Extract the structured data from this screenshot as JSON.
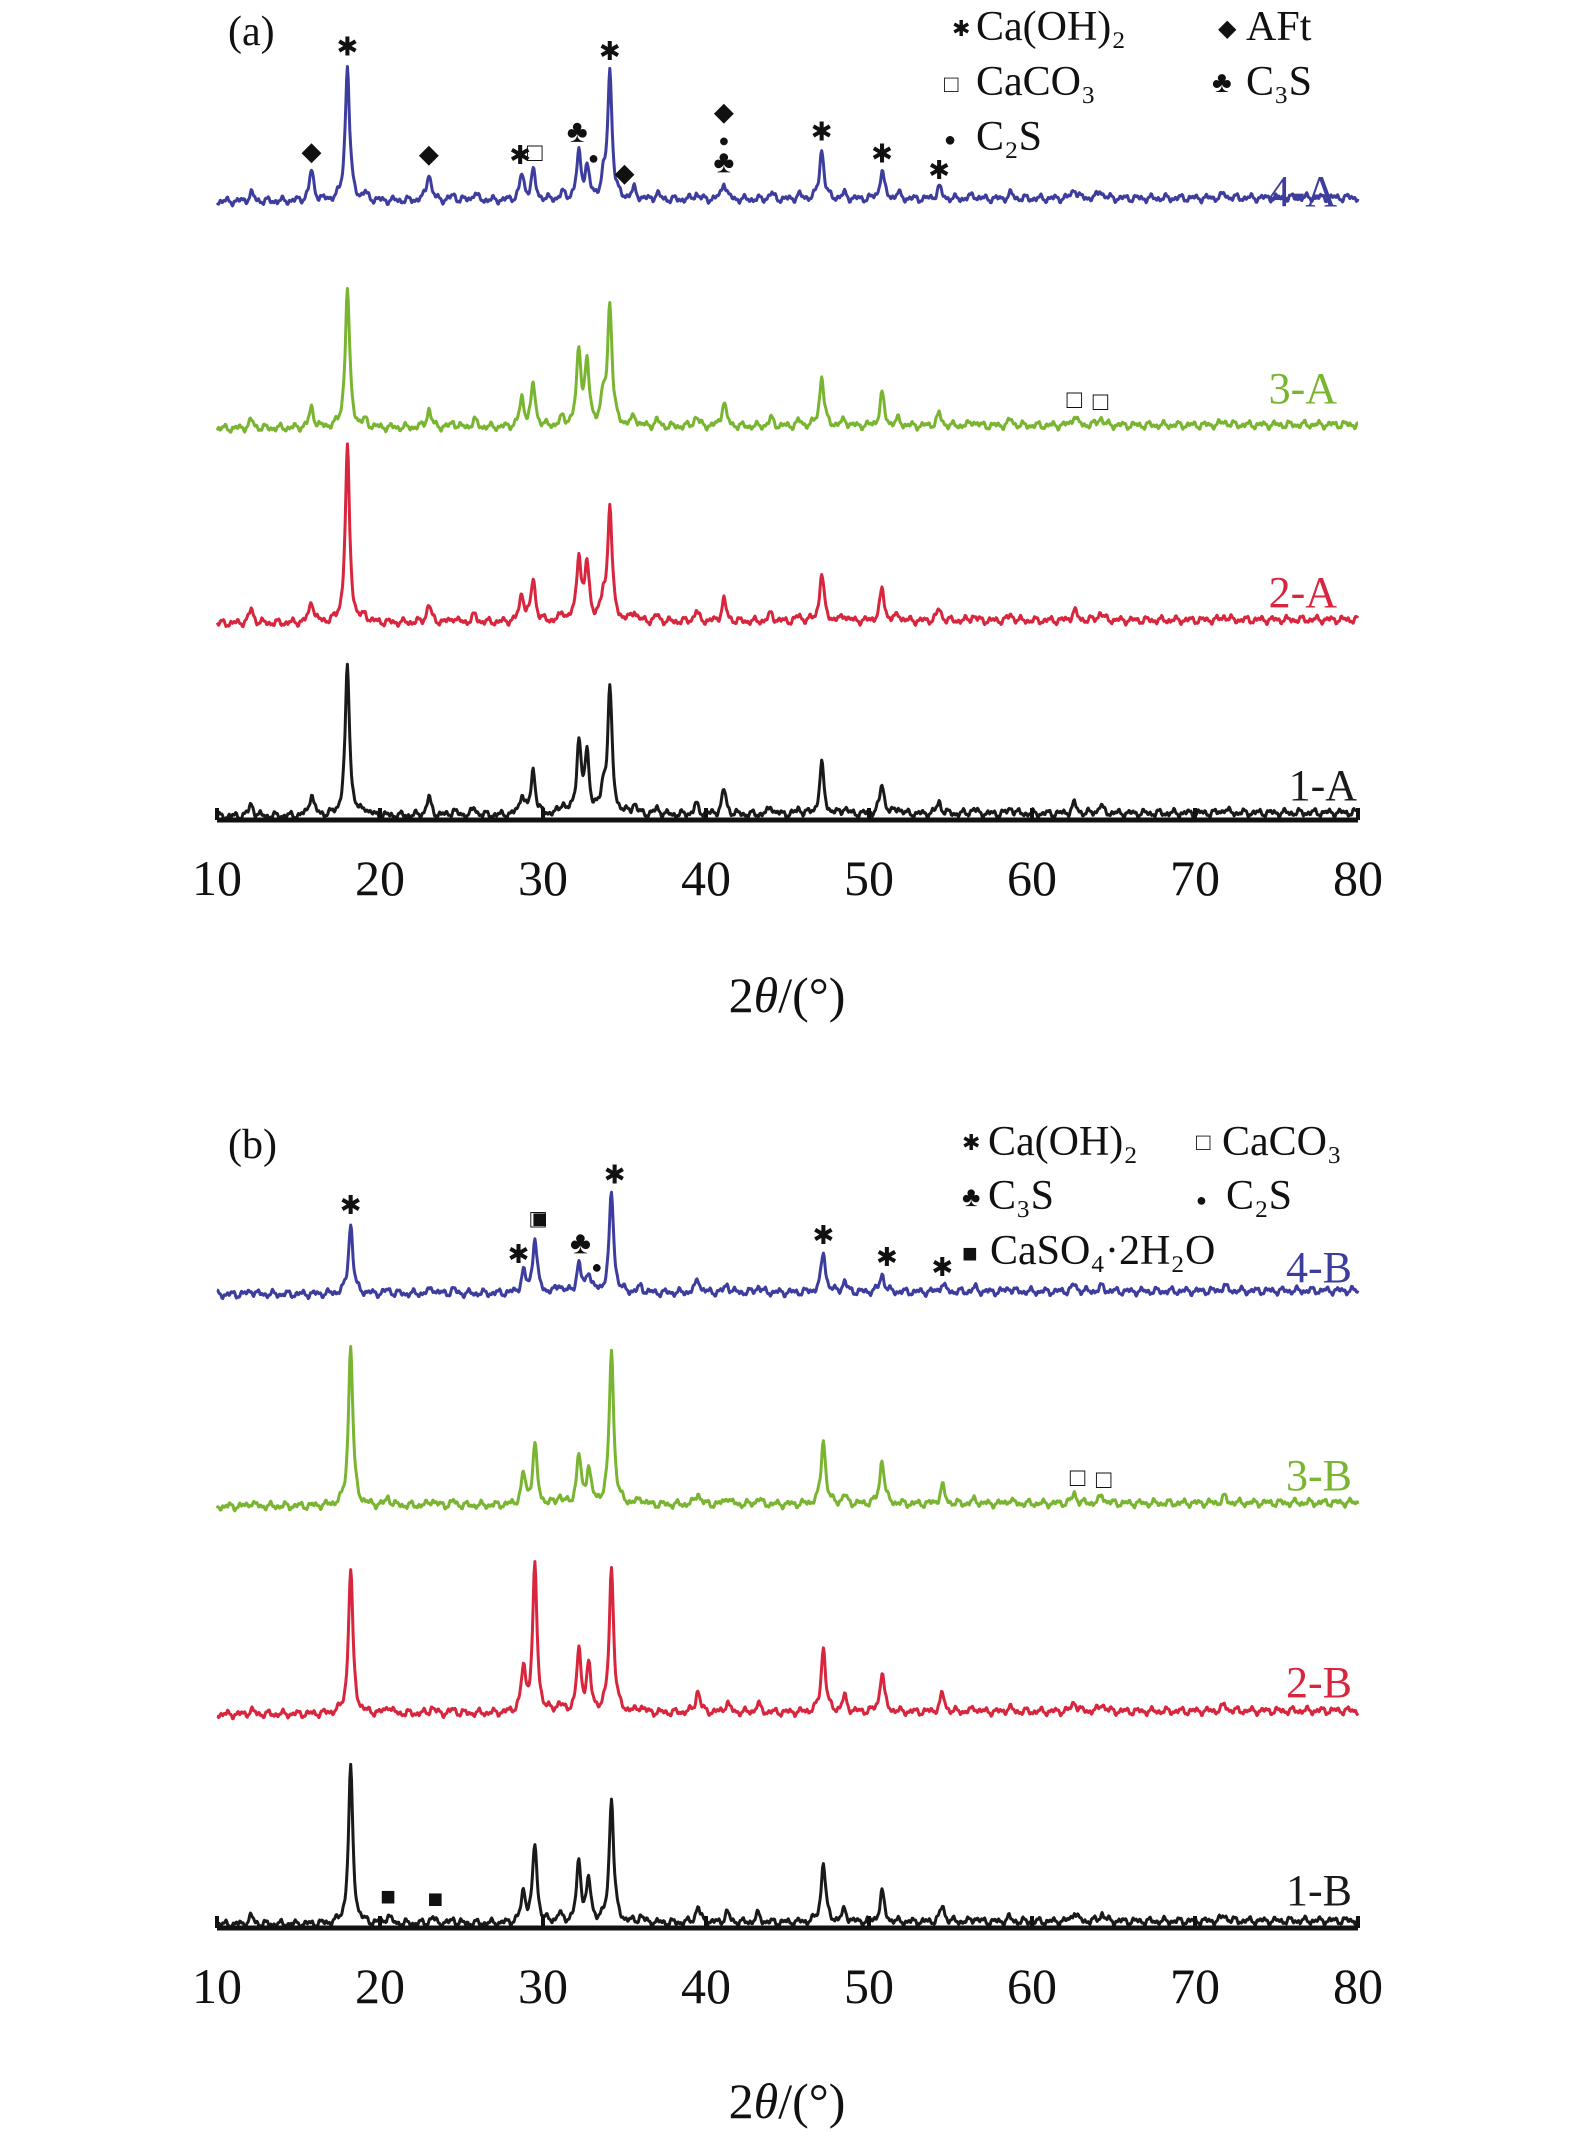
{
  "chart_data": [
    {
      "type": "line",
      "panel_label": "(a)",
      "xlabel_prefix": "2",
      "xlabel_theta": "θ",
      "xlabel_suffix": "/(°)",
      "ylabel": "",
      "xlim": [
        10,
        80
      ],
      "xticks": [
        "10",
        "20",
        "30",
        "40",
        "50",
        "60",
        "70",
        "80"
      ],
      "grid": false,
      "legend_placement": "top-right",
      "legend": [
        {
          "symbol": "✱",
          "label": "Ca(OH)₂"
        },
        {
          "symbol": "◆",
          "label": "AFt"
        },
        {
          "symbol": "□",
          "label": "CaCO₃"
        },
        {
          "symbol": "♣",
          "label": "C₃S"
        },
        {
          "symbol": "●",
          "label": "C₂S"
        }
      ],
      "series": [
        {
          "name": "4-A",
          "color": "#3d3d9e",
          "peaks": [
            [
              12.1,
              8
            ],
            [
              15.8,
              30
            ],
            [
              18.0,
              135
            ],
            [
              19.1,
              6
            ],
            [
              23.0,
              28
            ],
            [
              24.5,
              5
            ],
            [
              25.8,
              7
            ],
            [
              28.7,
              25
            ],
            [
              29.4,
              28
            ],
            [
              31.2,
              6
            ],
            [
              32.2,
              45
            ],
            [
              32.7,
              30
            ],
            [
              33.7,
              16
            ],
            [
              34.1,
              128
            ],
            [
              35.6,
              10
            ],
            [
              37.0,
              6
            ],
            [
              39.4,
              6
            ],
            [
              41.1,
              18
            ],
            [
              44.0,
              6
            ],
            [
              45.7,
              4
            ],
            [
              47.1,
              50
            ],
            [
              48.5,
              5
            ],
            [
              50.8,
              28
            ],
            [
              51.8,
              5
            ],
            [
              54.3,
              12
            ],
            [
              56.4,
              4
            ],
            [
              58.7,
              5
            ],
            [
              62.6,
              10
            ],
            [
              64.2,
              8
            ],
            [
              71.8,
              4
            ]
          ]
        },
        {
          "name": "3-A",
          "color": "#79b531",
          "peaks": [
            [
              12.1,
              8
            ],
            [
              15.8,
              20
            ],
            [
              18.0,
              140
            ],
            [
              19.1,
              6
            ],
            [
              23.0,
              18
            ],
            [
              24.5,
              5
            ],
            [
              25.8,
              7
            ],
            [
              28.7,
              28
            ],
            [
              29.4,
              42
            ],
            [
              31.2,
              8
            ],
            [
              32.2,
              75
            ],
            [
              32.7,
              60
            ],
            [
              33.7,
              25
            ],
            [
              34.1,
              122
            ],
            [
              35.6,
              10
            ],
            [
              37.0,
              6
            ],
            [
              39.4,
              10
            ],
            [
              41.1,
              25
            ],
            [
              44.0,
              8
            ],
            [
              45.7,
              5
            ],
            [
              47.1,
              50
            ],
            [
              48.5,
              6
            ],
            [
              50.8,
              32
            ],
            [
              51.8,
              6
            ],
            [
              54.3,
              12
            ],
            [
              56.4,
              5
            ],
            [
              58.7,
              6
            ],
            [
              62.6,
              10
            ],
            [
              64.2,
              8
            ],
            [
              71.8,
              4
            ]
          ]
        },
        {
          "name": "2-A",
          "color": "#d7263d",
          "peaks": [
            [
              12.1,
              14
            ],
            [
              15.8,
              22
            ],
            [
              18.0,
              175
            ],
            [
              19.1,
              6
            ],
            [
              23.0,
              18
            ],
            [
              24.5,
              5
            ],
            [
              25.8,
              7
            ],
            [
              28.7,
              28
            ],
            [
              29.4,
              42
            ],
            [
              31.2,
              8
            ],
            [
              32.2,
              65
            ],
            [
              32.7,
              55
            ],
            [
              33.7,
              20
            ],
            [
              34.1,
              115
            ],
            [
              35.6,
              10
            ],
            [
              37.0,
              6
            ],
            [
              39.4,
              10
            ],
            [
              41.1,
              22
            ],
            [
              44.0,
              8
            ],
            [
              45.7,
              5
            ],
            [
              47.1,
              48
            ],
            [
              48.5,
              6
            ],
            [
              50.8,
              32
            ],
            [
              51.8,
              6
            ],
            [
              54.3,
              12
            ],
            [
              56.4,
              5
            ],
            [
              58.7,
              6
            ],
            [
              62.6,
              10
            ],
            [
              64.2,
              8
            ],
            [
              71.8,
              4
            ]
          ]
        },
        {
          "name": "1-A",
          "color": "#1a1a1a",
          "peaks": [
            [
              12.1,
              12
            ],
            [
              15.8,
              22
            ],
            [
              18.0,
              150
            ],
            [
              19.1,
              6
            ],
            [
              23.0,
              18
            ],
            [
              24.5,
              5
            ],
            [
              25.8,
              7
            ],
            [
              28.7,
              20
            ],
            [
              29.4,
              45
            ],
            [
              31.2,
              10
            ],
            [
              32.2,
              72
            ],
            [
              32.7,
              58
            ],
            [
              33.7,
              22
            ],
            [
              34.1,
              125
            ],
            [
              35.6,
              10
            ],
            [
              37.0,
              6
            ],
            [
              39.4,
              10
            ],
            [
              41.1,
              25
            ],
            [
              44.0,
              8
            ],
            [
              45.7,
              5
            ],
            [
              47.1,
              50
            ],
            [
              48.5,
              6
            ],
            [
              50.8,
              30
            ],
            [
              51.8,
              6
            ],
            [
              54.3,
              12
            ],
            [
              56.4,
              5
            ],
            [
              58.7,
              6
            ],
            [
              62.6,
              10
            ],
            [
              64.2,
              8
            ],
            [
              71.8,
              4
            ]
          ]
        }
      ],
      "annotations": [
        {
          "symbol": "◆",
          "x": 15.8,
          "series": "4-A"
        },
        {
          "symbol": "✱",
          "x": 18.0,
          "series": "4-A"
        },
        {
          "symbol": "◆",
          "x": 23.0,
          "series": "4-A"
        },
        {
          "symbol": "✱",
          "x": 28.6,
          "series": "4-A"
        },
        {
          "symbol": "□",
          "x": 29.5,
          "series": "4-A"
        },
        {
          "symbol": "♣",
          "x": 32.1,
          "series": "4-A"
        },
        {
          "symbol": "●",
          "x": 33.1,
          "series": "4-A"
        },
        {
          "symbol": "✱",
          "x": 34.1,
          "series": "4-A"
        },
        {
          "symbol": "◆",
          "x": 35.0,
          "series": "4-A"
        },
        {
          "symbol": "♣",
          "x": 41.1,
          "series": "4-A"
        },
        {
          "symbol": "●",
          "x": 41.1,
          "series": "4-A"
        },
        {
          "symbol": "◆",
          "x": 41.1,
          "series": "4-A"
        },
        {
          "symbol": "✱",
          "x": 47.1,
          "series": "4-A"
        },
        {
          "symbol": "✱",
          "x": 50.8,
          "series": "4-A"
        },
        {
          "symbol": "✱",
          "x": 54.3,
          "series": "4-A"
        },
        {
          "symbol": "□",
          "x": 62.6,
          "series": "3-A"
        },
        {
          "symbol": "□",
          "x": 64.2,
          "series": "3-A"
        }
      ]
    },
    {
      "type": "line",
      "panel_label": "(b)",
      "xlabel_prefix": "2",
      "xlabel_theta": "θ",
      "xlabel_suffix": "/(°)",
      "ylabel": "",
      "xlim": [
        10,
        80
      ],
      "xticks": [
        "10",
        "20",
        "30",
        "40",
        "50",
        "60",
        "70",
        "80"
      ],
      "grid": false,
      "legend_placement": "top-right",
      "legend": [
        {
          "symbol": "✱",
          "label": "Ca(OH)₂"
        },
        {
          "symbol": "□",
          "label": "CaCO₃"
        },
        {
          "symbol": "♣",
          "label": "C₃S"
        },
        {
          "symbol": "●",
          "label": "C₂S"
        },
        {
          "symbol": "■",
          "label": "CaSO₄·2H₂O"
        }
      ],
      "series": [
        {
          "name": "4-B",
          "color": "#3d3d9e",
          "peaks": [
            [
              12.1,
              4
            ],
            [
              18.2,
              70
            ],
            [
              20.5,
              4
            ],
            [
              23.2,
              6
            ],
            [
              24.5,
              4
            ],
            [
              28.8,
              20
            ],
            [
              29.5,
              55
            ],
            [
              31.0,
              8
            ],
            [
              32.2,
              28
            ],
            [
              32.8,
              20
            ],
            [
              34.2,
              100
            ],
            [
              36.0,
              6
            ],
            [
              39.5,
              14
            ],
            [
              41.3,
              8
            ],
            [
              43.2,
              6
            ],
            [
              47.2,
              40
            ],
            [
              48.5,
              10
            ],
            [
              50.8,
              18
            ],
            [
              54.5,
              8
            ],
            [
              56.5,
              4
            ],
            [
              58.6,
              4
            ],
            [
              62.6,
              7
            ],
            [
              64.3,
              5
            ],
            [
              71.8,
              5
            ]
          ]
        },
        {
          "name": "3-B",
          "color": "#79b531",
          "peaks": [
            [
              12.1,
              4
            ],
            [
              18.2,
              160
            ],
            [
              20.5,
              8
            ],
            [
              23.2,
              6
            ],
            [
              24.5,
              4
            ],
            [
              28.8,
              30
            ],
            [
              29.5,
              60
            ],
            [
              31.0,
              8
            ],
            [
              32.2,
              48
            ],
            [
              32.8,
              35
            ],
            [
              34.2,
              155
            ],
            [
              36.0,
              6
            ],
            [
              39.5,
              12
            ],
            [
              41.3,
              8
            ],
            [
              43.2,
              6
            ],
            [
              47.2,
              65
            ],
            [
              48.5,
              8
            ],
            [
              50.8,
              45
            ],
            [
              54.5,
              18
            ],
            [
              56.5,
              4
            ],
            [
              58.6,
              4
            ],
            [
              62.6,
              10
            ],
            [
              64.3,
              8
            ],
            [
              71.8,
              6
            ]
          ]
        },
        {
          "name": "2-B",
          "color": "#d7263d",
          "peaks": [
            [
              12.1,
              4
            ],
            [
              18.2,
              145
            ],
            [
              20.5,
              8
            ],
            [
              23.2,
              6
            ],
            [
              24.5,
              4
            ],
            [
              28.8,
              42
            ],
            [
              29.5,
              145
            ],
            [
              31.0,
              8
            ],
            [
              32.2,
              60
            ],
            [
              32.8,
              45
            ],
            [
              34.2,
              145
            ],
            [
              36.0,
              6
            ],
            [
              39.5,
              22
            ],
            [
              41.3,
              10
            ],
            [
              43.2,
              8
            ],
            [
              47.2,
              65
            ],
            [
              48.5,
              15
            ],
            [
              50.8,
              40
            ],
            [
              54.5,
              18
            ],
            [
              56.5,
              4
            ],
            [
              58.6,
              4
            ],
            [
              62.6,
              10
            ],
            [
              64.3,
              8
            ],
            [
              71.8,
              6
            ]
          ]
        },
        {
          "name": "1-B",
          "color": "#1a1a1a",
          "peaks": [
            [
              12.1,
              8
            ],
            [
              18.2,
              155
            ],
            [
              20.5,
              8
            ],
            [
              23.2,
              6
            ],
            [
              24.5,
              4
            ],
            [
              28.8,
              30
            ],
            [
              29.5,
              78
            ],
            [
              31.0,
              8
            ],
            [
              32.2,
              60
            ],
            [
              32.8,
              40
            ],
            [
              34.2,
              125
            ],
            [
              36.0,
              6
            ],
            [
              39.5,
              16
            ],
            [
              41.3,
              10
            ],
            [
              43.2,
              8
            ],
            [
              47.2,
              60
            ],
            [
              48.5,
              12
            ],
            [
              50.8,
              30
            ],
            [
              54.5,
              16
            ],
            [
              56.5,
              4
            ],
            [
              58.6,
              4
            ],
            [
              62.6,
              10
            ],
            [
              64.3,
              8
            ],
            [
              71.8,
              6
            ]
          ]
        }
      ],
      "annotations": [
        {
          "symbol": "✱",
          "x": 18.2,
          "series": "4-B"
        },
        {
          "symbol": "✱",
          "x": 28.5,
          "series": "4-B"
        },
        {
          "symbol": "□",
          "x": 29.7,
          "series": "4-B"
        },
        {
          "symbol": "■",
          "x": 29.8,
          "series": "4-B"
        },
        {
          "symbol": "♣",
          "x": 32.3,
          "series": "4-B"
        },
        {
          "symbol": "●",
          "x": 33.3,
          "series": "4-B"
        },
        {
          "symbol": "✱",
          "x": 34.4,
          "series": "4-B"
        },
        {
          "symbol": "✱",
          "x": 47.2,
          "series": "4-B"
        },
        {
          "symbol": "✱",
          "x": 51.1,
          "series": "4-B"
        },
        {
          "symbol": "✱",
          "x": 54.5,
          "series": "4-B"
        },
        {
          "symbol": "□",
          "x": 62.8,
          "series": "3-B"
        },
        {
          "symbol": "□",
          "x": 64.4,
          "series": "3-B"
        },
        {
          "symbol": "■",
          "x": 20.5,
          "series": "1-B"
        },
        {
          "symbol": "■",
          "x": 23.4,
          "series": "1-B"
        }
      ]
    }
  ]
}
